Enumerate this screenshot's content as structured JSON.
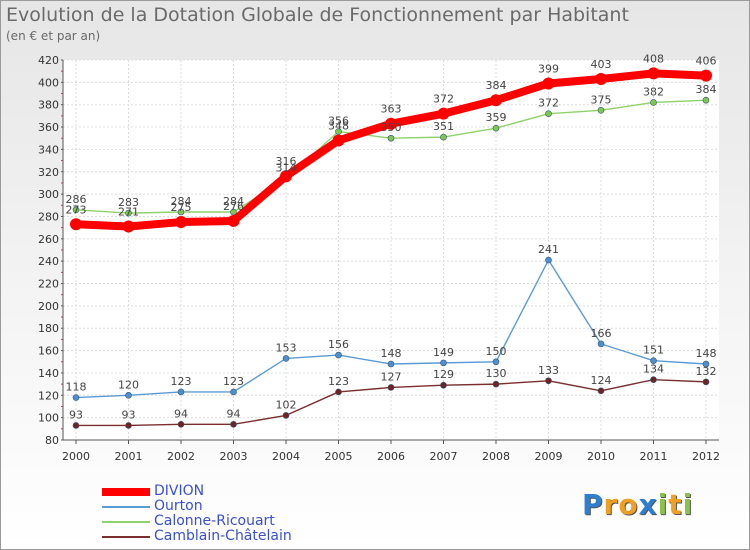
{
  "chart_data": {
    "type": "line",
    "title": "Evolution de la Dotation Globale de Fonctionnement par Habitant",
    "subtitle": "(en € et par an)",
    "x": [
      "2000",
      "2001",
      "2002",
      "2003",
      "2004",
      "2005",
      "2006",
      "2007",
      "2008",
      "2009",
      "2010",
      "2011",
      "2012"
    ],
    "ylim": [
      80,
      420
    ],
    "yticks": [
      80,
      100,
      120,
      140,
      160,
      180,
      200,
      220,
      240,
      260,
      280,
      300,
      320,
      340,
      360,
      380,
      400,
      420
    ],
    "grid": true,
    "legend_position": "bottom-left",
    "series": [
      {
        "name": "DIVION",
        "color": "#ff0000",
        "marker": "#ff0000",
        "width": "thick",
        "values": [
          273,
          271,
          275,
          276,
          316,
          348,
          363,
          372,
          384,
          399,
          403,
          408,
          406
        ],
        "labels": [
          "273",
          "271",
          "275",
          "276",
          "316",
          "348",
          "363",
          "372",
          "384",
          "399",
          "403",
          "408",
          "406"
        ]
      },
      {
        "name": "Ourton",
        "color": "#5b9bd5",
        "marker": "#4f8fce",
        "width": "thin",
        "values": [
          118,
          120,
          123,
          123,
          153,
          156,
          148,
          149,
          150,
          241,
          166,
          151,
          148
        ],
        "labels": [
          "118",
          "120",
          "123",
          "123",
          "153",
          "156",
          "148",
          "149",
          "150",
          "241",
          "166",
          "151",
          "148"
        ]
      },
      {
        "name": "Calonne-Ricouart",
        "color": "#8fd16a",
        "marker": "#7fc84f",
        "width": "thin",
        "values": [
          286,
          283,
          284,
          284,
          314,
          356,
          350,
          351,
          359,
          372,
          375,
          382,
          384
        ],
        "labels": [
          "286",
          "283",
          "284",
          "284",
          "314",
          "356",
          "350",
          "351",
          "359",
          "372",
          "375",
          "382",
          "384"
        ]
      },
      {
        "name": "Camblain-Châtelain",
        "color": "#7a2e2e",
        "marker": "#6e2424",
        "width": "thin",
        "values": [
          93,
          93,
          94,
          94,
          102,
          123,
          127,
          129,
          130,
          133,
          124,
          134,
          132
        ],
        "labels": [
          "93",
          "93",
          "94",
          "94",
          "102",
          "123",
          "127",
          "129",
          "130",
          "133",
          "124",
          "134",
          "132"
        ]
      }
    ]
  },
  "logo": {
    "letters": [
      "P",
      "r",
      "o",
      "x",
      "i",
      "t",
      "i"
    ],
    "colors": [
      "#2f7fd0",
      "#f0a020",
      "#f0a020",
      "#2f7fd0",
      "#8bc34a",
      "#f0a020",
      "#8bc34a"
    ]
  }
}
